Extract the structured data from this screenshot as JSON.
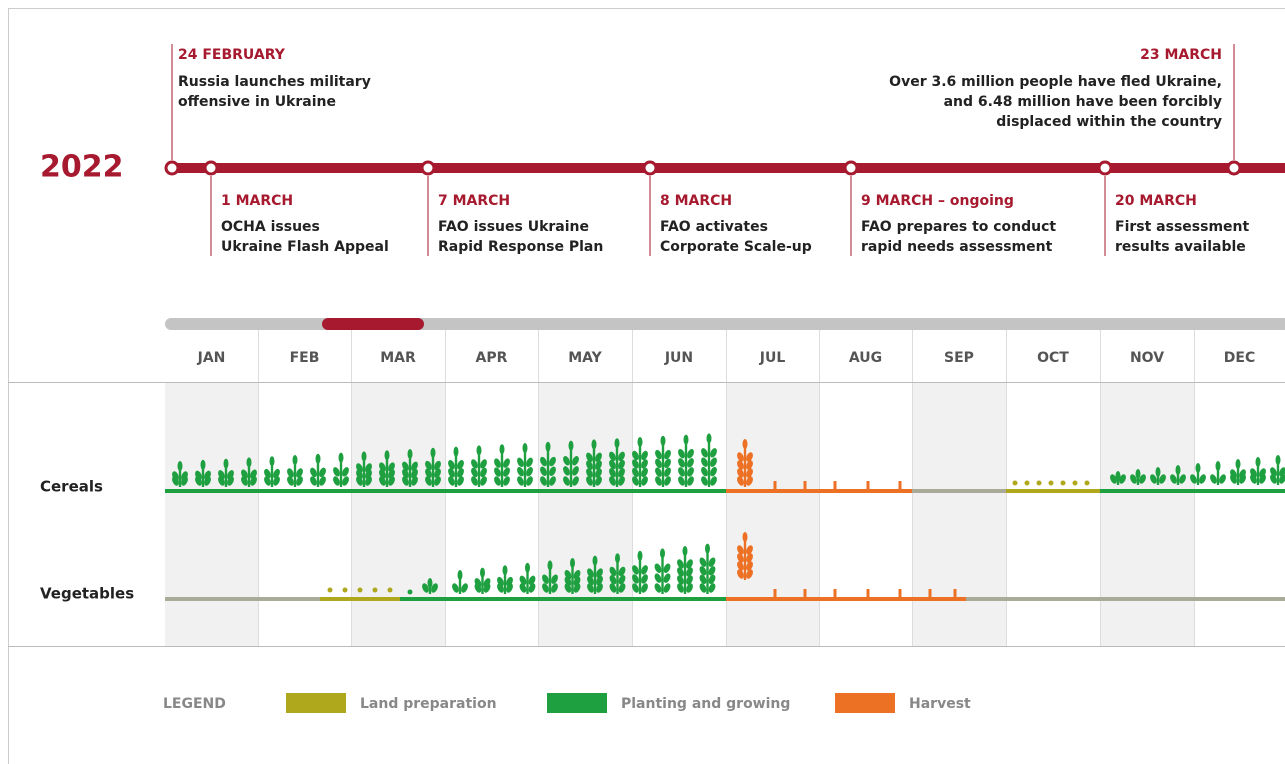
{
  "year": "2022",
  "events_above": [
    {
      "date": "24 FEBRUARY",
      "lines": [
        "Russia launches military",
        "offensive in Ukraine"
      ]
    },
    {
      "date": "23 MARCH",
      "lines": [
        "Over 3.6 million people have fled Ukraine,",
        "and 6.48 million have been forcibly",
        "displaced within the country"
      ]
    }
  ],
  "events_below": [
    {
      "date": "1 MARCH",
      "lines": [
        "OCHA issues",
        "Ukraine Flash Appeal"
      ]
    },
    {
      "date": "7 MARCH",
      "lines": [
        "FAO issues Ukraine",
        "Rapid Response Plan"
      ]
    },
    {
      "date": "8 MARCH",
      "lines": [
        "FAO activates",
        "Corporate Scale-up"
      ]
    },
    {
      "date": "9 MARCH – ongoing",
      "lines": [
        "FAO prepares to conduct",
        "rapid needs assessment"
      ]
    },
    {
      "date": "20 MARCH",
      "lines": [
        "First assessment",
        "results available"
      ]
    }
  ],
  "months": [
    "JAN",
    "FEB",
    "MAR",
    "APR",
    "MAY",
    "JUN",
    "JUL",
    "AUG",
    "SEP",
    "OCT",
    "NOV",
    "DEC"
  ],
  "rows": [
    "Cereals",
    "Vegetables"
  ],
  "legend": {
    "title": "LEGEND",
    "items": [
      "Land preparation",
      "Planting and growing",
      "Harvest"
    ]
  }
}
